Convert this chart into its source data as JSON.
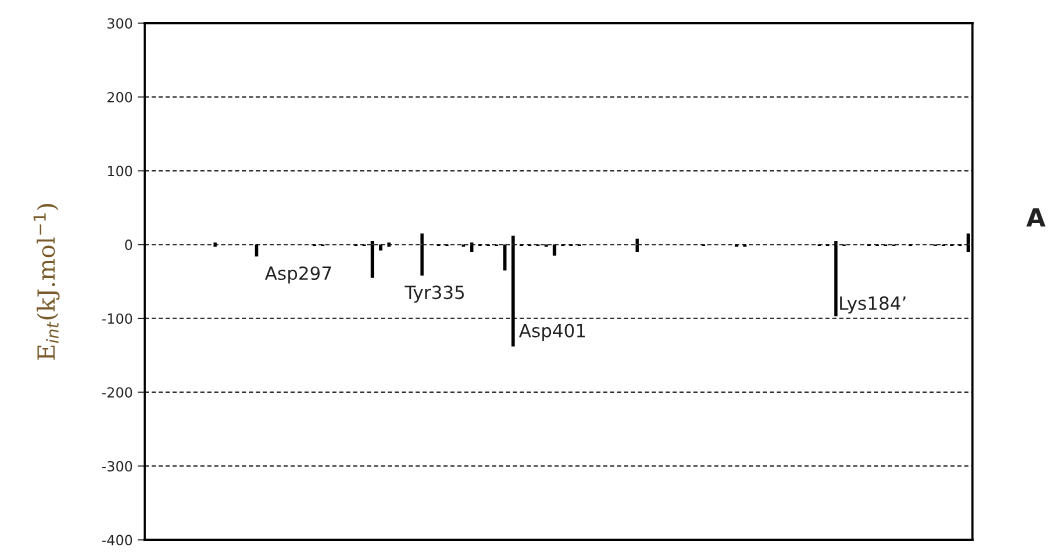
{
  "chart_data": {
    "type": "bar",
    "ylabel": "E$_{int}$(kJ.mol$^{−1}$)",
    "categories": [
      null,
      null,
      null,
      null,
      null,
      null,
      null,
      null,
      null,
      null,
      null,
      null,
      null,
      null,
      null,
      null,
      null,
      null,
      null,
      null,
      null,
      null,
      null,
      null,
      null,
      null,
      null,
      null,
      null,
      null,
      null,
      null,
      null,
      null,
      null,
      null,
      null,
      null,
      null,
      null,
      null,
      null,
      null,
      null,
      null,
      null,
      null,
      null,
      null,
      null,
      null,
      null,
      null,
      null,
      null,
      null,
      null,
      null,
      null,
      null,
      null,
      null,
      null,
      null,
      null,
      null,
      null,
      null,
      null,
      null,
      null,
      null,
      null,
      null,
      null,
      null,
      null,
      null,
      null,
      null,
      null,
      null,
      null,
      null,
      null,
      null,
      null,
      null,
      null,
      null,
      null,
      null,
      null,
      null,
      null,
      null,
      null,
      null,
      null,
      null
    ],
    "series": [
      {
        "color": "#000000",
        "values": [
          null,
          null,
          null,
          null,
          null,
          null,
          null,
          null,
          -3,
          null,
          null,
          null,
          null,
          -16,
          null,
          null,
          null,
          null,
          null,
          null,
          -2,
          -2,
          null,
          null,
          null,
          -2,
          -2,
          -45,
          -8,
          -3,
          null,
          null,
          null,
          -42,
          null,
          -2,
          -2,
          null,
          -3,
          -10,
          -2,
          -2,
          -2,
          -35,
          -138,
          -2,
          -2,
          -2,
          -3,
          -15,
          -2,
          -2,
          -2,
          null,
          null,
          null,
          null,
          null,
          null,
          -10,
          null,
          null,
          null,
          null,
          null,
          null,
          null,
          -2,
          null,
          null,
          null,
          -3,
          -3,
          null,
          null,
          null,
          null,
          null,
          null,
          null,
          null,
          -2,
          -2,
          -97,
          -2,
          null,
          null,
          -2,
          -2,
          -2,
          -2,
          null,
          -2,
          null,
          null,
          -2,
          -2,
          -2,
          -2,
          -10
        ]
      },
      {
        "color": "#000000",
        "values": [
          null,
          null,
          null,
          null,
          null,
          null,
          null,
          null,
          3,
          null,
          null,
          null,
          null,
          null,
          null,
          null,
          null,
          null,
          null,
          null,
          null,
          null,
          null,
          null,
          null,
          null,
          null,
          5,
          null,
          3,
          null,
          null,
          null,
          15,
          null,
          null,
          null,
          null,
          null,
          3,
          null,
          null,
          null,
          null,
          12,
          null,
          null,
          null,
          null,
          null,
          null,
          null,
          null,
          null,
          null,
          null,
          null,
          null,
          null,
          8,
          null,
          null,
          null,
          null,
          null,
          null,
          null,
          null,
          null,
          null,
          null,
          null,
          null,
          null,
          null,
          null,
          null,
          null,
          null,
          null,
          null,
          null,
          null,
          5,
          null,
          null,
          null,
          null,
          null,
          null,
          null,
          null,
          null,
          null,
          null,
          null,
          null,
          null,
          null,
          15
        ]
      }
    ],
    "ylim": [
      -400,
      300
    ],
    "yticks": [
      -400,
      -300,
      -200,
      -100,
      0,
      100,
      200,
      300
    ],
    "grid": "y",
    "tick_labels": "y",
    "annotations": [
      "Asp297",
      "Tyr335",
      "Asp401",
      "Lys184’",
      "A"
    ]
  }
}
